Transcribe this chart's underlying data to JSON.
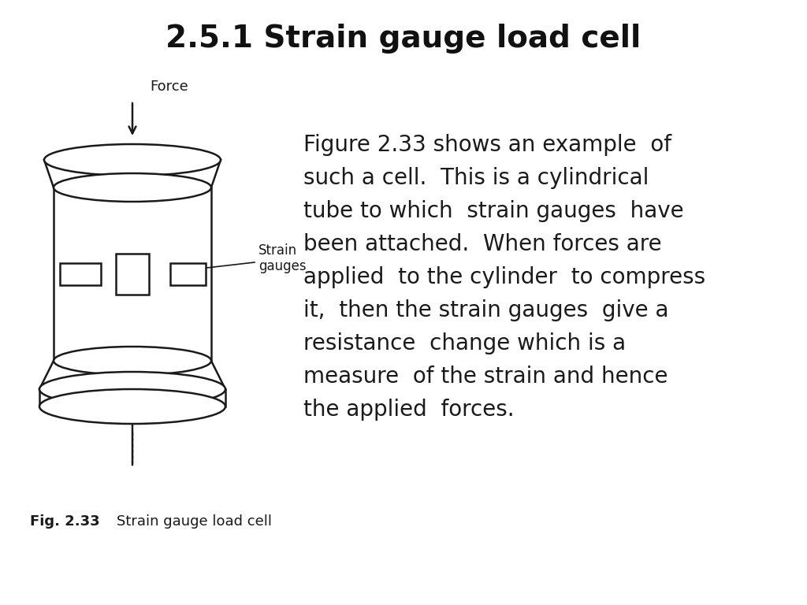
{
  "title": "2.5.1 Strain gauge load cell",
  "title_fontsize": 28,
  "title_fontweight": "bold",
  "fig_caption": "Fig. 2.33",
  "fig_label": "Strain gauge load cell",
  "body_text_lines": [
    "Figure 2.33 shows an example  of",
    "such a cell.  This is a cylindrical",
    "tube to which  strain gauges  have",
    "been attached.  When forces are",
    "applied  to the cylinder  to compress",
    "it,  then the strain gauges  give a",
    "resistance  change which is a",
    "measure  of the strain and hence",
    "the applied  forces."
  ],
  "body_text_fontsize": 20,
  "label_force": "Force",
  "label_strain": "Strain\ngauges",
  "background_color": "#ffffff",
  "drawing_color": "#1a1a1a"
}
